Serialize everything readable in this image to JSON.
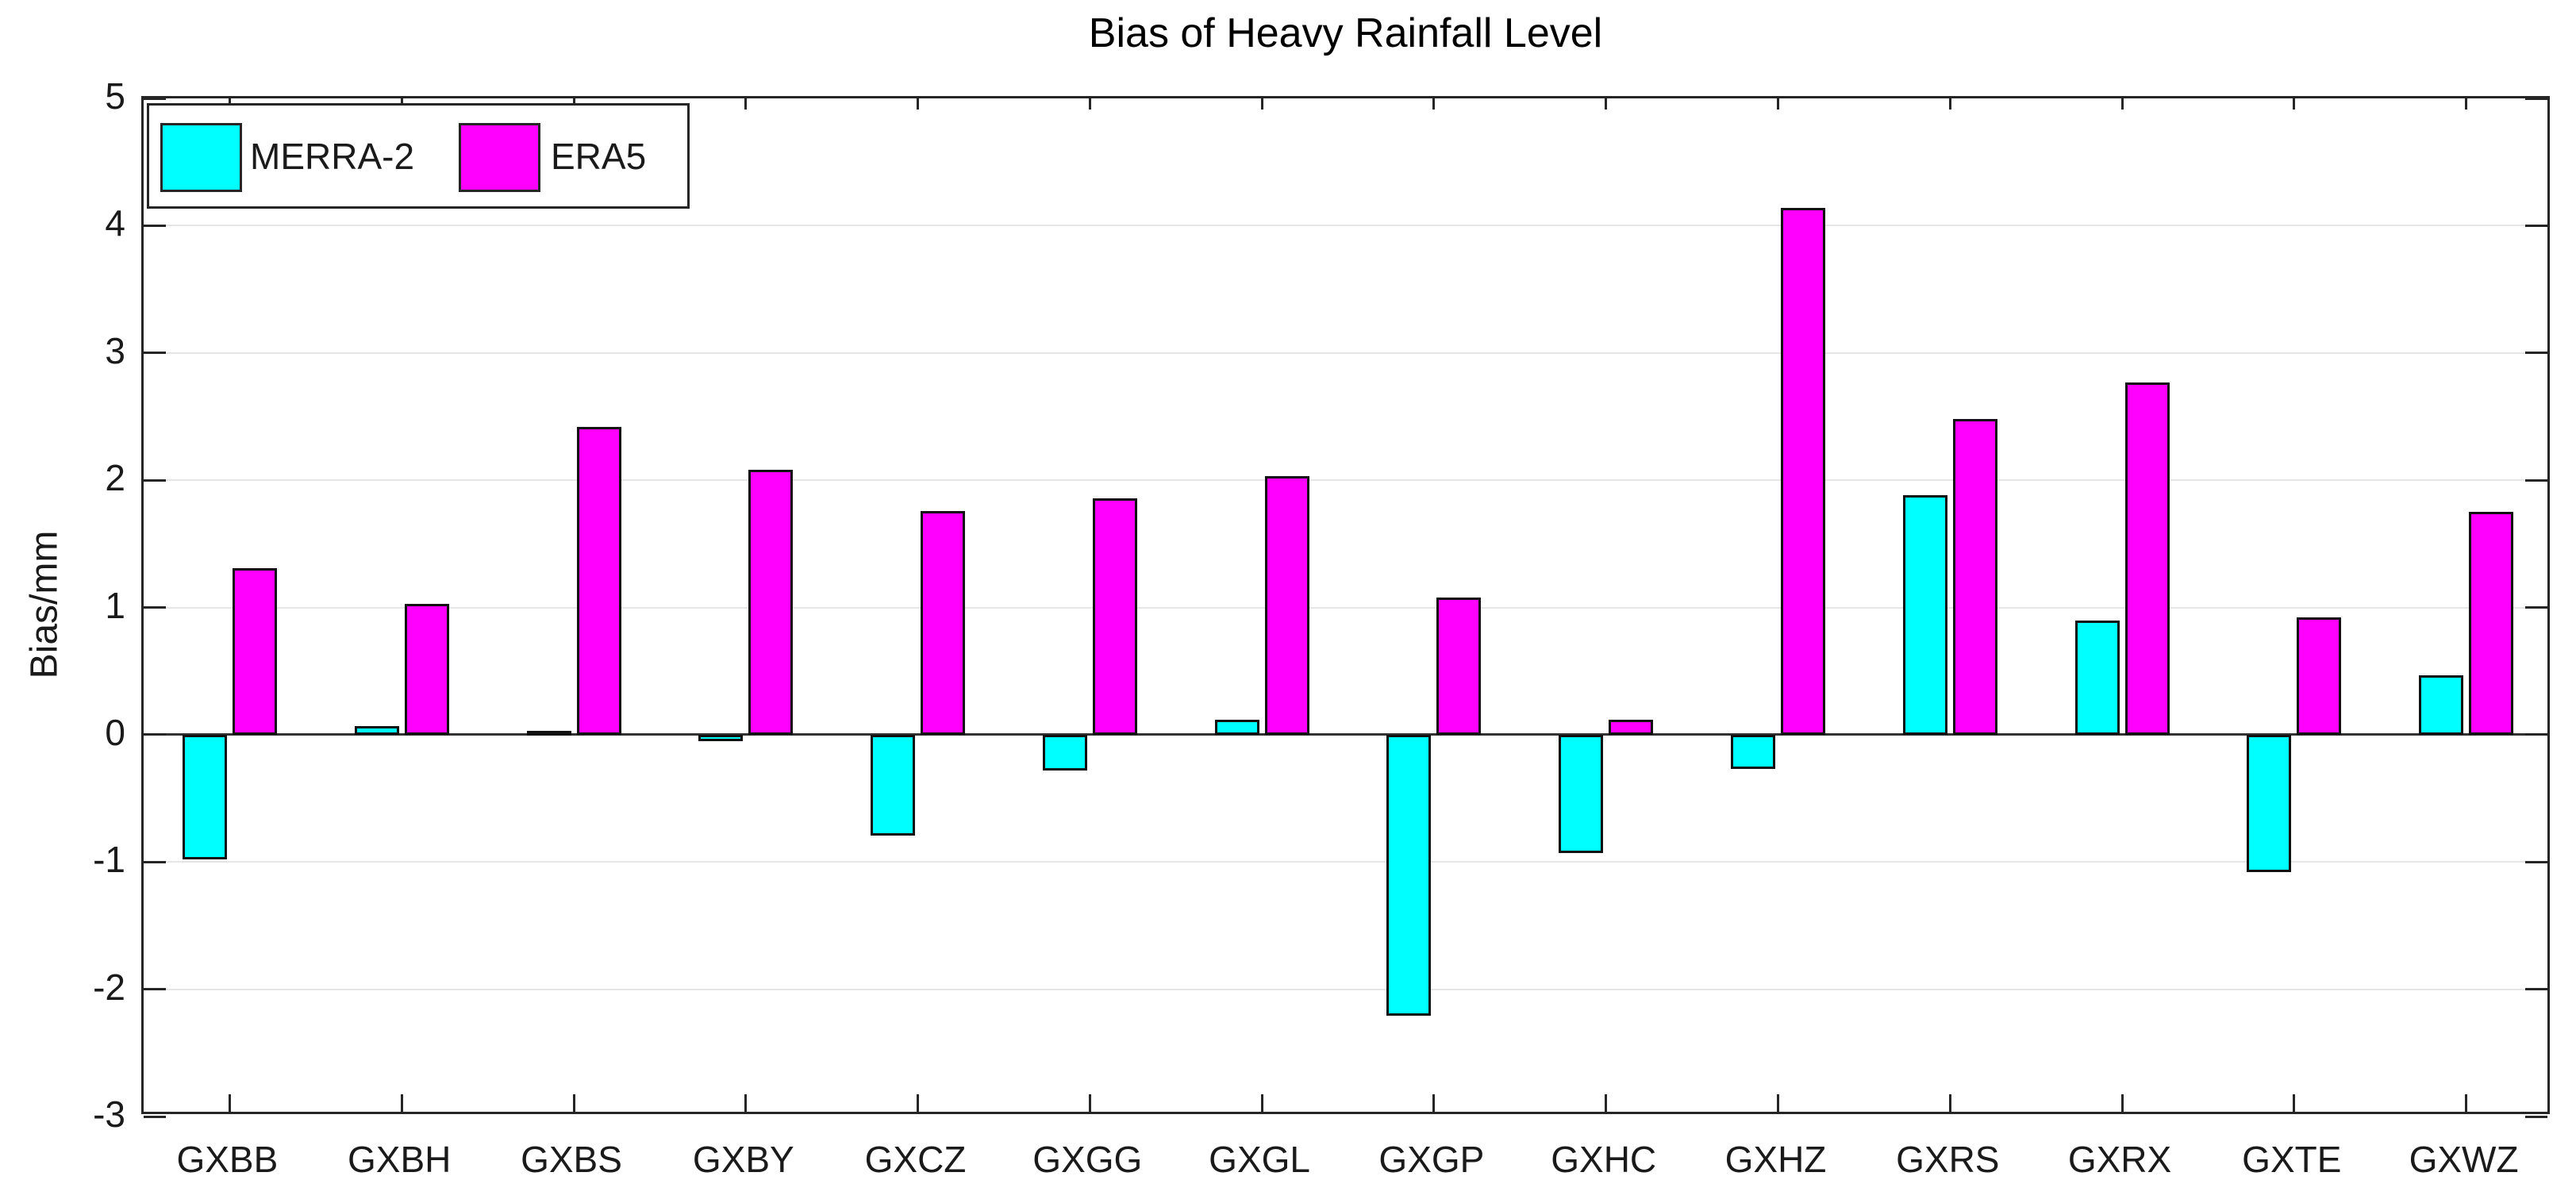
{
  "figure": {
    "background": "#ffffff"
  },
  "chart_data": {
    "type": "bar",
    "title": "Bias of Heavy Rainfall Level",
    "xlabel": "",
    "ylabel": "Bias/mm",
    "ylim": [
      -3,
      5
    ],
    "yticks": [
      5,
      4,
      3,
      2,
      1,
      0,
      -1,
      -2,
      -3
    ],
    "grid": "horizontal",
    "legend_position": "top-left-inside",
    "categories": [
      "GXBB",
      "GXBH",
      "GXBS",
      "GXBY",
      "GXCZ",
      "GXGG",
      "GXGL",
      "GXGP",
      "GXHC",
      "GXHZ",
      "GXRS",
      "GXRX",
      "GXTE",
      "GXWZ"
    ],
    "series": [
      {
        "name": "MERRA-2",
        "color": "#00ffff",
        "edge_color": "#111111",
        "values": [
          -0.98,
          0.07,
          0.03,
          -0.05,
          -0.79,
          -0.28,
          0.12,
          -2.21,
          -0.93,
          -0.27,
          1.88,
          0.9,
          -1.08,
          0.47
        ]
      },
      {
        "name": "ERA5",
        "color": "#ff00ff",
        "edge_color": "#111111",
        "values": [
          1.31,
          1.03,
          2.42,
          2.08,
          1.76,
          1.86,
          2.03,
          1.08,
          0.12,
          4.14,
          2.48,
          2.77,
          0.92,
          1.75
        ]
      }
    ]
  },
  "colors": {
    "axis": "#262626",
    "grid": "#e6e6e6",
    "zero_line": "#333333",
    "text": "#1a1a1a",
    "background": "#ffffff"
  }
}
